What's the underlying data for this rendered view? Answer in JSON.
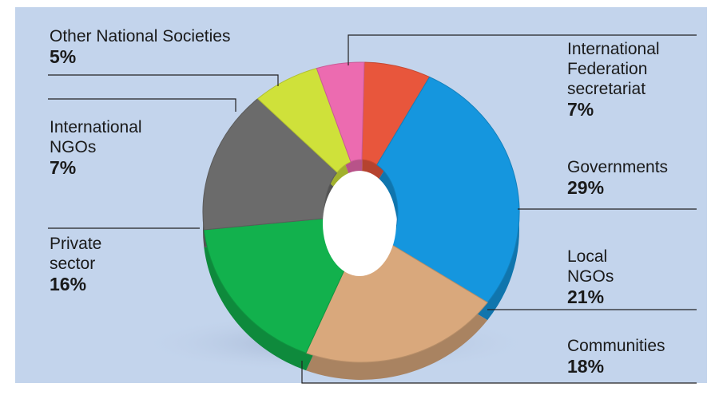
{
  "chart_data": {
    "type": "pie",
    "variant": "3d-donut",
    "slices": [
      {
        "label": "International\nFederation\nsecretariat",
        "value": 7,
        "value_label": "7%",
        "color": "#e8563c"
      },
      {
        "label": "Governments",
        "value": 29,
        "value_label": "29%",
        "color": "#1596de"
      },
      {
        "label": "Local\nNGOs",
        "value": 21,
        "value_label": "21%",
        "color": "#d9a87c"
      },
      {
        "label": "Communities",
        "value": 18,
        "value_label": "18%",
        "color": "#12b14d"
      },
      {
        "label": "Private\nsector",
        "value": 16,
        "value_label": "16%",
        "color": "#6b6b6b"
      },
      {
        "label": "International\nNGOs",
        "value": 7,
        "value_label": "7%",
        "color": "#cfe13a"
      },
      {
        "label": "Other National Societies",
        "value": 5,
        "value_label": "5%",
        "color": "#ec6bb0"
      }
    ],
    "background_color": "#c3d4ec",
    "leader_line_color": "#222222"
  }
}
